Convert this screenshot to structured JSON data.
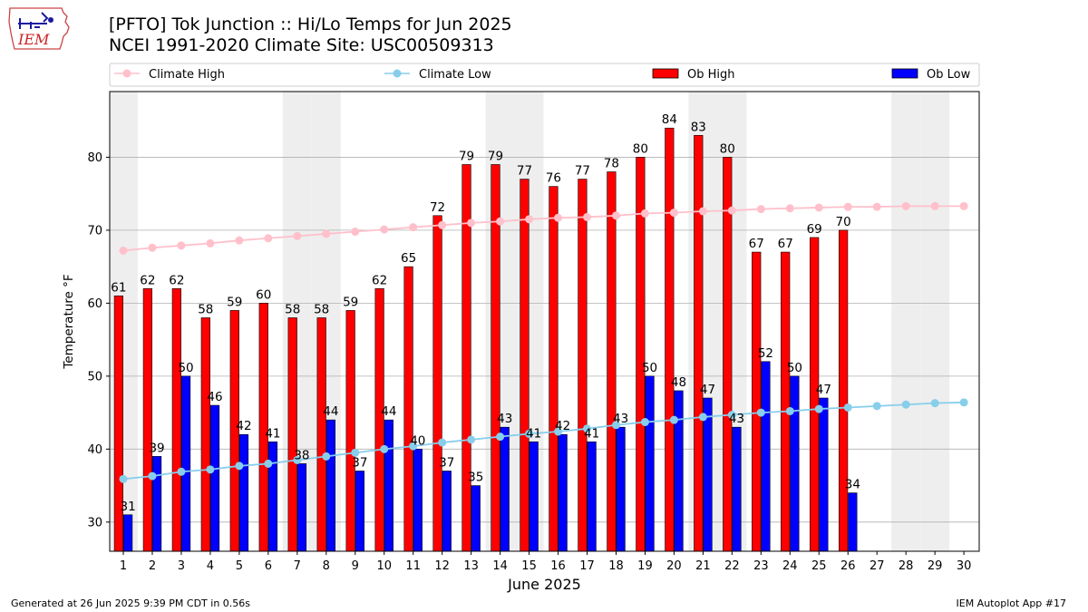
{
  "header": {
    "title_line1": "[PFTO] Tok Junction :: Hi/Lo Temps for Jun 2025",
    "title_line2": "NCEI 1991-2020 Climate Site: USC00509313",
    "logo_text": "IEM"
  },
  "footer": {
    "generated": "Generated at 26 Jun 2025 9:39 PM CDT in 0.56s",
    "app": "IEM Autoplot App #17"
  },
  "colors": {
    "ob_high": "#ff0000",
    "ob_low": "#0000ff",
    "climate_high": "#ffc0cb",
    "climate_low": "#87ceeb",
    "weekend_shade": "#eeeeee",
    "grid": "#b0b0b0"
  },
  "chart_data": {
    "type": "bar",
    "xlabel": "June 2025",
    "ylabel": "Temperature °F",
    "ylim": [
      26,
      89
    ],
    "yticks": [
      30,
      40,
      50,
      60,
      70,
      80
    ],
    "grid": "horizontal",
    "legend_placement": "top",
    "categories": [
      "1",
      "2",
      "3",
      "4",
      "5",
      "6",
      "7",
      "8",
      "9",
      "10",
      "11",
      "12",
      "13",
      "14",
      "15",
      "16",
      "17",
      "18",
      "19",
      "20",
      "21",
      "22",
      "23",
      "24",
      "25",
      "26",
      "27",
      "28",
      "29",
      "30"
    ],
    "shaded_days": [
      1,
      7,
      8,
      14,
      15,
      21,
      22,
      28,
      29
    ],
    "series": [
      {
        "name": "Climate High",
        "kind": "line",
        "values": [
          67.2,
          67.6,
          67.9,
          68.2,
          68.6,
          68.9,
          69.2,
          69.5,
          69.8,
          70.1,
          70.4,
          70.7,
          71.0,
          71.2,
          71.5,
          71.7,
          71.8,
          72.0,
          72.3,
          72.4,
          72.6,
          72.7,
          72.9,
          73.0,
          73.1,
          73.2,
          73.2,
          73.3,
          73.3,
          73.3
        ]
      },
      {
        "name": "Climate Low",
        "kind": "line",
        "values": [
          35.9,
          36.3,
          36.9,
          37.2,
          37.7,
          38.0,
          38.5,
          39.0,
          39.5,
          40.0,
          40.4,
          40.9,
          41.3,
          41.7,
          42.1,
          42.4,
          42.8,
          43.3,
          43.7,
          44.0,
          44.4,
          44.7,
          45.0,
          45.2,
          45.5,
          45.7,
          45.9,
          46.1,
          46.3,
          46.4
        ]
      },
      {
        "name": "Ob High",
        "kind": "bar",
        "values": [
          61,
          62,
          62,
          58,
          59,
          60,
          58,
          58,
          59,
          62,
          65,
          72,
          79,
          79,
          77,
          76,
          77,
          78,
          80,
          84,
          83,
          80,
          67,
          67,
          69,
          70,
          null,
          null,
          null,
          null
        ]
      },
      {
        "name": "Ob Low",
        "kind": "bar",
        "values": [
          31,
          39,
          50,
          46,
          42,
          41,
          38,
          44,
          37,
          44,
          40,
          37,
          35,
          43,
          41,
          42,
          41,
          43,
          50,
          48,
          47,
          43,
          52,
          50,
          47,
          34,
          null,
          null,
          null,
          null
        ]
      }
    ]
  }
}
